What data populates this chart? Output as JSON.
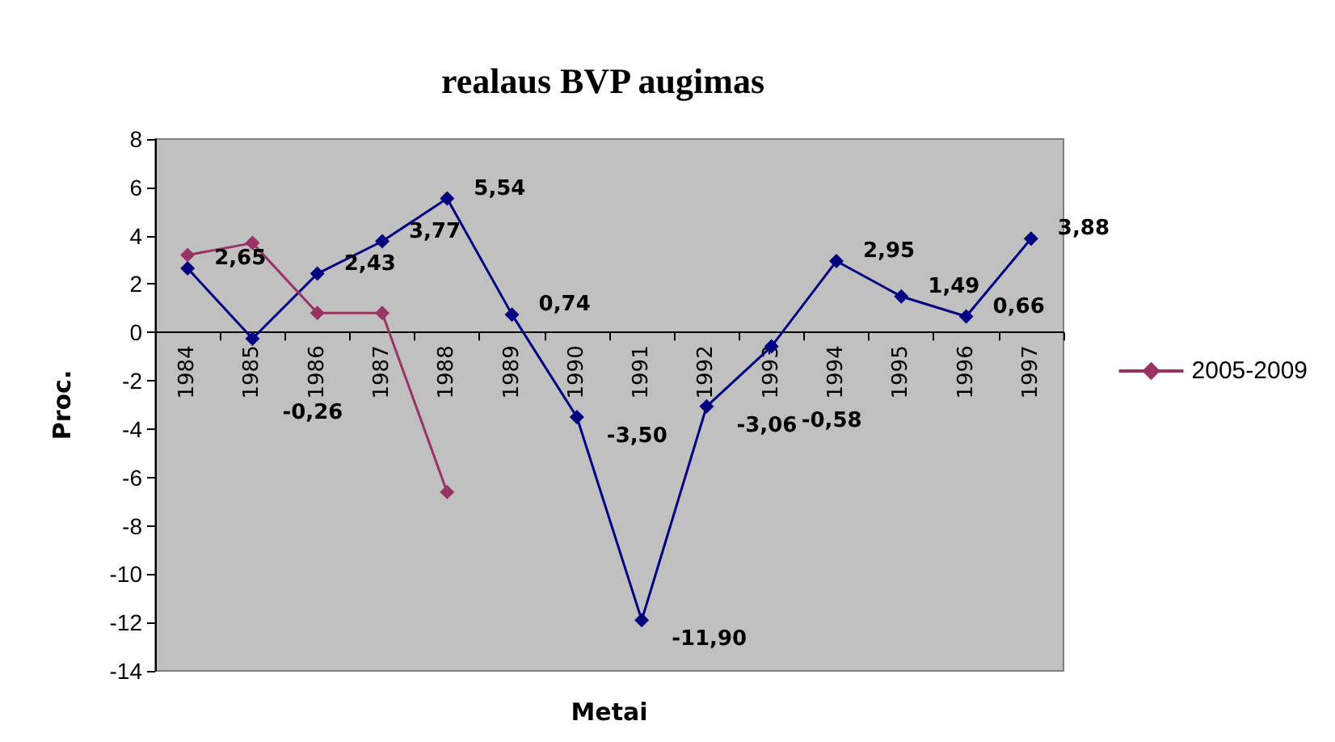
{
  "chart_data": {
    "type": "line",
    "title": "realaus BVP augimas",
    "xlabel": "Metai",
    "ylabel": "Proc.",
    "categories": [
      "1984",
      "1985",
      "1986",
      "1987",
      "1988",
      "1989",
      "1990",
      "1991",
      "1992",
      "1993",
      "1994",
      "1995",
      "1996",
      "1997"
    ],
    "series": [
      {
        "color": "#000080",
        "values": [
          2.65,
          -0.26,
          2.43,
          3.77,
          5.54,
          0.74,
          -3.5,
          -11.9,
          -3.06,
          -0.58,
          2.95,
          1.49,
          0.66,
          3.88
        ],
        "value_labels": [
          "2,65",
          "-0,26",
          "2,43",
          "3,77",
          "5,54",
          "0,74",
          "-3,50",
          "-11,90",
          "-3,06",
          "-0,58",
          "2,95",
          "1,49",
          "0,66",
          "3,88"
        ]
      },
      {
        "name": "2005-2009",
        "color": "#993366",
        "values": [
          3.2,
          3.7,
          0.8,
          0.8,
          -6.6,
          null,
          null,
          null,
          null,
          null,
          null,
          null,
          null,
          null
        ]
      }
    ],
    "ylim": [
      -14,
      8
    ],
    "yticks": [
      -14,
      -12,
      -10,
      -8,
      -6,
      -4,
      -2,
      0,
      2,
      4,
      6,
      8
    ],
    "grid": false,
    "legend": "right",
    "marker": "diamond",
    "line_style": "solid"
  }
}
